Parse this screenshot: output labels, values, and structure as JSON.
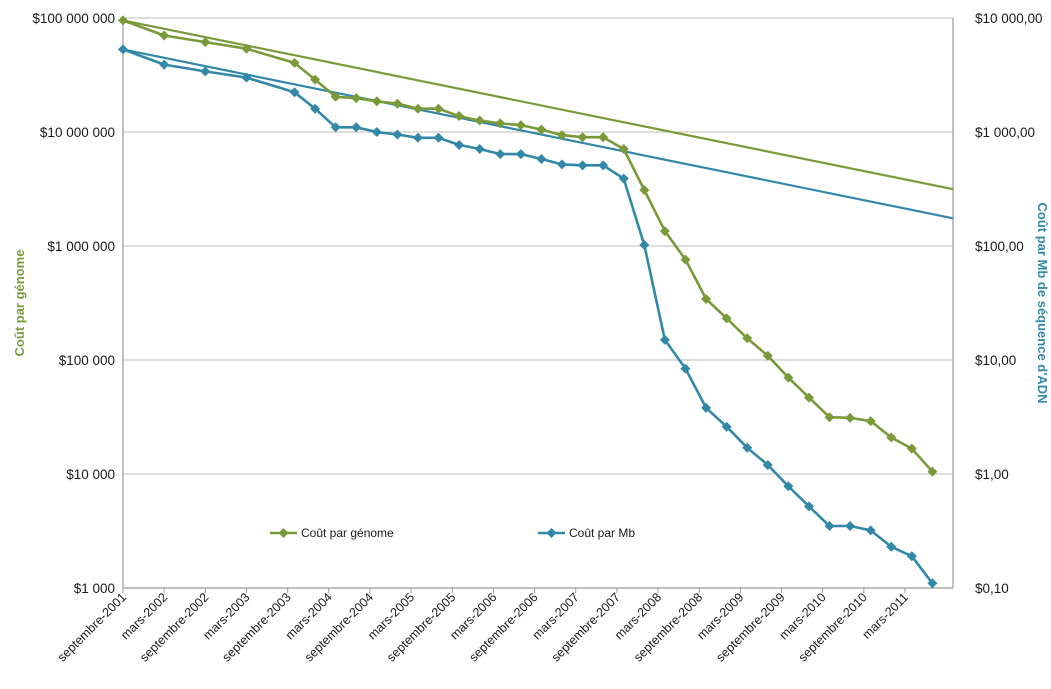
{
  "chart_data": {
    "type": "line",
    "title": "",
    "xlabel": "",
    "ylabel_left": "Coût par génome",
    "ylabel_right": "Coût par Mb de séquence d'ADN",
    "y_scale": "log",
    "ylim_left": [
      1000,
      100000000
    ],
    "ylim_right": [
      0.1,
      10000
    ],
    "grid": "horizontal",
    "legend": "bottom-center",
    "left_ticks": [
      {
        "value": 100000000,
        "label": "$100 000 000"
      },
      {
        "value": 10000000,
        "label": "$10 000 000"
      },
      {
        "value": 1000000,
        "label": "$1 000 000"
      },
      {
        "value": 100000,
        "label": "$100 000"
      },
      {
        "value": 10000,
        "label": "$10 000"
      },
      {
        "value": 1000,
        "label": "$1 000"
      }
    ],
    "right_ticks": [
      {
        "value": 10000,
        "label": "$10 000,00"
      },
      {
        "value": 1000,
        "label": "$1 000,00"
      },
      {
        "value": 100,
        "label": "$100,00"
      },
      {
        "value": 10,
        "label": "$10,00"
      },
      {
        "value": 1,
        "label": "$1,00"
      },
      {
        "value": 0.1,
        "label": "$0,10"
      }
    ],
    "x_tick_labels": [
      "septembre-2001",
      "mars-2002",
      "septembre-2002",
      "mars-2003",
      "septembre-2003",
      "mars-2004",
      "septembre-2004",
      "mars-2005",
      "septembre-2005",
      "mars-2006",
      "septembre-2006",
      "mars-2007",
      "septembre-2007",
      "mars-2008",
      "septembre-2008",
      "mars-2009",
      "septembre-2009",
      "mars-2010",
      "septembre-2010",
      "mars-2011"
    ],
    "x_range": [
      "2001-09",
      "2011-10"
    ],
    "series": [
      {
        "name": "Coût par génome",
        "axis": "left",
        "color": "#7A9A3A",
        "marker": "diamond",
        "points": [
          [
            "2001-09",
            95300000
          ],
          [
            "2002-03",
            70200000
          ],
          [
            "2002-09",
            61500000
          ],
          [
            "2003-03",
            53800000
          ],
          [
            "2003-10",
            40400000
          ],
          [
            "2004-01",
            28800000
          ],
          [
            "2004-04",
            20400000
          ],
          [
            "2004-07",
            19800000
          ],
          [
            "2004-10",
            18600000
          ],
          [
            "2005-01",
            17700000
          ],
          [
            "2005-04",
            16000000
          ],
          [
            "2005-07",
            16000000
          ],
          [
            "2005-10",
            13800000
          ],
          [
            "2006-01",
            12600000
          ],
          [
            "2006-04",
            11900000
          ],
          [
            "2006-07",
            11500000
          ],
          [
            "2006-10",
            10500000
          ],
          [
            "2007-01",
            9400000
          ],
          [
            "2007-04",
            9000000
          ],
          [
            "2007-07",
            9000000
          ],
          [
            "2007-10",
            7100000
          ],
          [
            "2008-01",
            3100000
          ],
          [
            "2008-04",
            1350000
          ],
          [
            "2008-07",
            760000
          ],
          [
            "2008-10",
            343000
          ],
          [
            "2009-01",
            232000
          ],
          [
            "2009-04",
            155000
          ],
          [
            "2009-07",
            109000
          ],
          [
            "2009-10",
            70000
          ],
          [
            "2010-01",
            46800
          ],
          [
            "2010-04",
            31500
          ],
          [
            "2010-07",
            31100
          ],
          [
            "2010-10",
            29100
          ],
          [
            "2011-01",
            20900
          ],
          [
            "2011-04",
            16700
          ],
          [
            "2011-07",
            10500
          ]
        ]
      },
      {
        "name": "Coût par Mb",
        "axis": "right",
        "color": "#3388A8",
        "marker": "diamond",
        "points": [
          [
            "2001-09",
            5300
          ],
          [
            "2002-03",
            3900
          ],
          [
            "2002-09",
            3400
          ],
          [
            "2003-03",
            3000
          ],
          [
            "2003-10",
            2230
          ],
          [
            "2004-01",
            1600
          ],
          [
            "2004-04",
            1100
          ],
          [
            "2004-07",
            1100
          ],
          [
            "2004-10",
            1000
          ],
          [
            "2005-01",
            950
          ],
          [
            "2005-04",
            890
          ],
          [
            "2005-07",
            890
          ],
          [
            "2005-10",
            770
          ],
          [
            "2006-01",
            710
          ],
          [
            "2006-04",
            640
          ],
          [
            "2006-07",
            640
          ],
          [
            "2006-10",
            580
          ],
          [
            "2007-01",
            520
          ],
          [
            "2007-04",
            510
          ],
          [
            "2007-07",
            510
          ],
          [
            "2007-10",
            390
          ],
          [
            "2008-01",
            102
          ],
          [
            "2008-04",
            15
          ],
          [
            "2008-07",
            8.4
          ],
          [
            "2008-10",
            3.8
          ],
          [
            "2009-01",
            2.6
          ],
          [
            "2009-04",
            1.7
          ],
          [
            "2009-07",
            1.2
          ],
          [
            "2009-10",
            0.78
          ],
          [
            "2010-01",
            0.52
          ],
          [
            "2010-04",
            0.35
          ],
          [
            "2010-07",
            0.35
          ],
          [
            "2010-10",
            0.32
          ],
          [
            "2011-01",
            0.23
          ],
          [
            "2011-04",
            0.19
          ],
          [
            "2011-07",
            0.11
          ]
        ]
      }
    ],
    "trend_lines": [
      {
        "series": "Coût par génome",
        "axis": "left",
        "color": "#7A9A3A",
        "from": [
          "2001-09",
          95300000
        ],
        "to": [
          "2011-10",
          3150000
        ]
      },
      {
        "series": "Coût par Mb",
        "axis": "right",
        "color": "#3388A8",
        "from": [
          "2001-09",
          5300
        ],
        "to": [
          "2011-10",
          175
        ]
      }
    ]
  }
}
